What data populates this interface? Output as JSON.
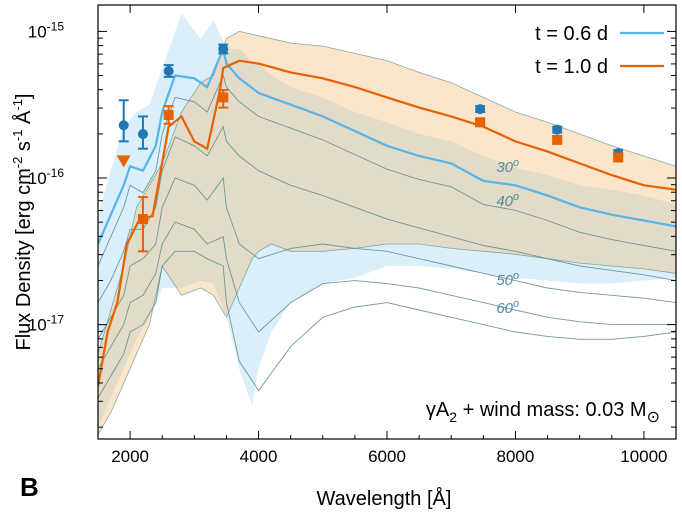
{
  "panel_label": "B",
  "annotation": {
    "prefix": "γA",
    "sub": "2",
    "middle": " + wind mass: 0.03 M",
    "sym": "⊙"
  },
  "chart_data": {
    "type": "line",
    "title": "",
    "xlabel": "Wavelength [Å]",
    "ylabel_parts": [
      "Flux Density [erg cm",
      "-2",
      " s",
      "-1",
      " Å",
      "-1",
      "]"
    ],
    "xlim": [
      1500,
      10500
    ],
    "ylim_log10": [
      -17.78,
      -14.82
    ],
    "xticks": [
      2000,
      4000,
      6000,
      8000,
      10000
    ],
    "yticks": [
      {
        "exp": -15,
        "label": "10",
        "sup": "-15"
      },
      {
        "exp": -16,
        "label": "10",
        "sup": "-16"
      },
      {
        "exp": -17,
        "label": "10",
        "sup": "-17"
      }
    ],
    "colors": {
      "t06": "#56b4e9",
      "t10": "#e66100",
      "obs06": "#1f77b4",
      "obs10": "#e66100",
      "angle": "#4a8aa6",
      "thin": "#5b8a88"
    },
    "legend": [
      {
        "label": "t = 0.6 d",
        "color": "#56b4e9"
      },
      {
        "label": "t = 1.0 d",
        "color": "#e66100"
      }
    ],
    "angle_labels": [
      {
        "text": "30",
        "deg": "o",
        "x": 7880,
        "logy": -15.96
      },
      {
        "text": "40",
        "deg": "o",
        "x": 7880,
        "logy": -16.19
      },
      {
        "text": "50",
        "deg": "o",
        "x": 7880,
        "logy": -16.73
      },
      {
        "text": "60",
        "deg": "o",
        "x": 7880,
        "logy": -16.92
      }
    ],
    "band_06": {
      "x": [
        1500,
        1700,
        1900,
        2100,
        2300,
        2500,
        2800,
        3100,
        3300,
        3500,
        3700,
        3900,
        4000,
        4200,
        4500,
        5000,
        5500,
        6000,
        6500,
        7000,
        7500,
        8000,
        8500,
        9000,
        9500,
        10000,
        10500
      ],
      "upper": [
        -16.25,
        -15.95,
        -15.65,
        -15.55,
        -15.5,
        -15.25,
        -14.88,
        -15.05,
        -14.92,
        -15.12,
        -15.12,
        -15.2,
        -15.22,
        -15.3,
        -15.38,
        -15.45,
        -15.55,
        -15.62,
        -15.7,
        -15.75,
        -15.85,
        -15.93,
        -15.98,
        -16.05,
        -16.08,
        -16.12,
        -16.18
      ],
      "lower": [
        -17.7,
        -17.5,
        -17.3,
        -17.1,
        -16.95,
        -16.75,
        -16.75,
        -16.7,
        -16.72,
        -16.95,
        -17.3,
        -17.55,
        -17.3,
        -17.05,
        -16.85,
        -16.72,
        -16.68,
        -16.6,
        -16.6,
        -16.62,
        -16.65,
        -16.68,
        -16.7,
        -16.72,
        -16.72,
        -16.7,
        -16.68
      ]
    },
    "band_10": {
      "x": [
        1500,
        1700,
        1900,
        2100,
        2300,
        2500,
        2800,
        3100,
        3300,
        3500,
        3700,
        3900,
        4000,
        4200,
        4500,
        5000,
        5500,
        6000,
        6500,
        7000,
        7500,
        8000,
        8500,
        9000,
        9500,
        10000,
        10500
      ],
      "upper": [
        -17.2,
        -16.9,
        -16.6,
        -16.2,
        -16.05,
        -15.9,
        -15.55,
        -15.35,
        -15.3,
        -15.05,
        -15.0,
        -15.02,
        -15.03,
        -15.05,
        -15.08,
        -15.1,
        -15.15,
        -15.2,
        -15.28,
        -15.35,
        -15.45,
        -15.55,
        -15.62,
        -15.7,
        -15.78,
        -15.85,
        -15.92
      ],
      "lower": [
        -17.75,
        -17.6,
        -17.4,
        -17.2,
        -17.0,
        -16.6,
        -16.8,
        -16.75,
        -16.8,
        -16.95,
        -16.75,
        -16.55,
        -16.5,
        -16.45,
        -16.5,
        -16.5,
        -16.48,
        -16.45,
        -16.45,
        -16.48,
        -16.5,
        -16.52,
        -16.55,
        -16.58,
        -16.6,
        -16.62,
        -16.65
      ]
    },
    "series": [
      {
        "name": "t = 0.6 d",
        "x": [
          1500,
          1700,
          1900,
          2000,
          2200,
          2400,
          2500,
          2700,
          3000,
          3200,
          3450,
          3500,
          3700,
          4000,
          4500,
          5000,
          5500,
          6000,
          6500,
          7000,
          7500,
          8000,
          8500,
          9000,
          9500,
          10000,
          10500
        ],
        "logy": [
          -16.45,
          -16.25,
          -16.05,
          -15.92,
          -15.95,
          -15.78,
          -15.55,
          -15.3,
          -15.32,
          -15.38,
          -15.12,
          -15.22,
          -15.32,
          -15.42,
          -15.5,
          -15.58,
          -15.68,
          -15.78,
          -15.85,
          -15.9,
          -16.02,
          -16.05,
          -16.12,
          -16.2,
          -16.25,
          -16.29,
          -16.33
        ],
        "gap": [
          7600,
          8000
        ]
      },
      {
        "name": "t = 1.0 d",
        "x": [
          1500,
          1650,
          1800,
          1950,
          2150,
          2350,
          2600,
          2800,
          3000,
          3200,
          3400,
          3450,
          3700,
          4000,
          4500,
          5000,
          5500,
          6000,
          6500,
          7000,
          7500,
          8000,
          8500,
          9000,
          9500,
          10000,
          10500
        ],
        "logy": [
          -17.42,
          -17.05,
          -16.85,
          -16.45,
          -16.28,
          -16.26,
          -15.65,
          -15.58,
          -15.75,
          -15.8,
          -15.4,
          -15.25,
          -15.2,
          -15.22,
          -15.28,
          -15.32,
          -15.38,
          -15.45,
          -15.52,
          -15.58,
          -15.65,
          -15.75,
          -15.82,
          -15.9,
          -15.98,
          -16.05,
          -16.08
        ]
      }
    ],
    "thin_lines": [
      {
        "logy": [
          -16.6,
          -16.4,
          -16.2,
          -16.05,
          -16.1,
          -15.95,
          -15.7,
          -15.45,
          -15.48,
          -15.55,
          -15.3,
          -15.38,
          -15.48,
          -15.58,
          -15.66,
          -15.74,
          -15.84,
          -15.94,
          -16.01,
          -16.06,
          -16.18,
          -16.22,
          -16.29,
          -16.37,
          -16.42,
          -16.46,
          -16.5
        ]
      },
      {
        "logy": [
          -16.85,
          -16.7,
          -16.5,
          -16.35,
          -16.35,
          -16.2,
          -15.95,
          -15.72,
          -15.78,
          -15.85,
          -15.65,
          -15.75,
          -15.85,
          -15.95,
          -16.05,
          -16.12,
          -16.2,
          -16.28,
          -16.34,
          -16.4,
          -16.46,
          -16.5,
          -16.55,
          -16.6,
          -16.63,
          -16.66,
          -16.7
        ]
      },
      {
        "logy": [
          -17.1,
          -16.95,
          -16.8,
          -16.6,
          -16.55,
          -16.45,
          -16.2,
          -16.0,
          -16.05,
          -16.15,
          -16.0,
          -16.2,
          -16.45,
          -16.55,
          -16.48,
          -16.45,
          -16.48,
          -16.5,
          -16.55,
          -16.6,
          -16.65,
          -16.7,
          -16.75,
          -16.78,
          -16.8,
          -16.82,
          -16.85
        ]
      },
      {
        "logy": [
          -17.3,
          -17.15,
          -17.0,
          -16.85,
          -16.8,
          -16.65,
          -16.45,
          -16.3,
          -16.35,
          -16.45,
          -16.4,
          -16.55,
          -16.85,
          -17.05,
          -16.85,
          -16.72,
          -16.7,
          -16.72,
          -16.75,
          -16.8,
          -16.85,
          -16.9,
          -16.95,
          -16.98,
          -17.0,
          -17.0,
          -17.0
        ]
      },
      {
        "logy": [
          -17.5,
          -17.35,
          -17.2,
          -17.05,
          -17.0,
          -16.85,
          -16.6,
          -16.5,
          -16.5,
          -16.55,
          -16.6,
          -16.85,
          -17.25,
          -17.45,
          -17.15,
          -16.95,
          -16.88,
          -16.85,
          -16.9,
          -16.95,
          -17.0,
          -17.05,
          -17.08,
          -17.1,
          -17.1,
          -17.08,
          -17.05
        ]
      }
    ],
    "observations_06": [
      {
        "x": 1900,
        "logy": -15.64,
        "err": [
          0.11,
          0.17
        ]
      },
      {
        "x": 2200,
        "logy": -15.7,
        "err": [
          0.1,
          0.12
        ]
      },
      {
        "x": 2600,
        "logy": -15.27,
        "err": [
          0.04,
          0.04
        ]
      },
      {
        "x": 3450,
        "logy": -15.12,
        "err": [
          0.03,
          0.03
        ]
      },
      {
        "x": 7450,
        "logy": -15.53,
        "err": [
          0.02,
          0.02
        ]
      },
      {
        "x": 8650,
        "logy": -15.67,
        "err": [
          0.02,
          0.02
        ]
      },
      {
        "x": 9600,
        "logy": -15.83,
        "err": [
          0.02,
          0.02
        ]
      }
    ],
    "observations_10": [
      {
        "x": 2200,
        "logy": -16.28,
        "err": [
          0.22,
          0.15
        ]
      },
      {
        "x": 2600,
        "logy": -15.57,
        "err": [
          0.06,
          0.06
        ]
      },
      {
        "x": 3450,
        "logy": -15.45,
        "err": [
          0.07,
          0.05
        ]
      },
      {
        "x": 7450,
        "logy": -15.62,
        "err": [
          0.02,
          0.02
        ]
      },
      {
        "x": 8650,
        "logy": -15.74,
        "err": [
          0.02,
          0.02
        ]
      },
      {
        "x": 9600,
        "logy": -15.86,
        "err": [
          0.02,
          0.02
        ]
      }
    ],
    "upper_limit_10": {
      "x": 1900,
      "logy": -15.88
    }
  }
}
